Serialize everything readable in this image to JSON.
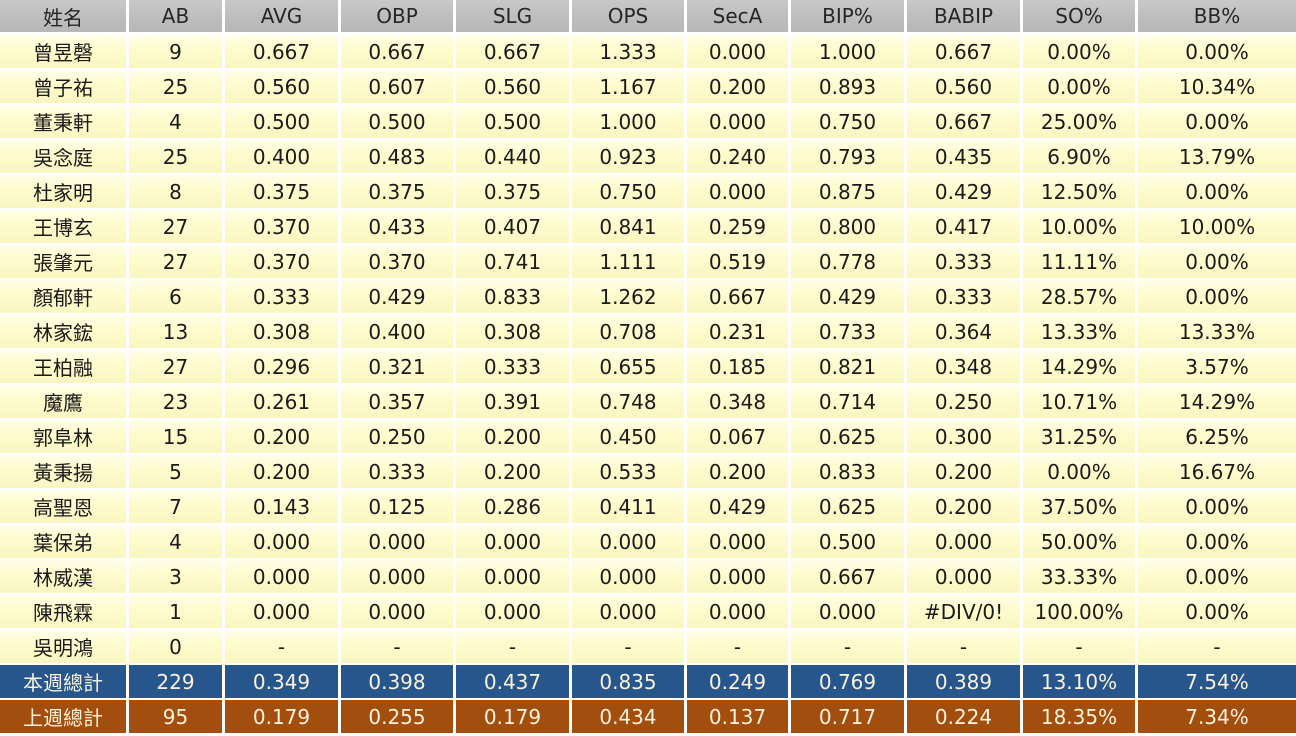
{
  "table": {
    "columns": [
      "姓名",
      "AB",
      "AVG",
      "OBP",
      "SLG",
      "OPS",
      "SecA",
      "BIP%",
      "BABIP",
      "SO%",
      "BB%"
    ],
    "rows": [
      {
        "name": "曾昱磬",
        "values": [
          "9",
          "0.667",
          "0.667",
          "0.667",
          "1.333",
          "0.000",
          "1.000",
          "0.667",
          "0.00%",
          "0.00%"
        ]
      },
      {
        "name": "曾子祐",
        "values": [
          "25",
          "0.560",
          "0.607",
          "0.560",
          "1.167",
          "0.200",
          "0.893",
          "0.560",
          "0.00%",
          "10.34%"
        ]
      },
      {
        "name": "董秉軒",
        "values": [
          "4",
          "0.500",
          "0.500",
          "0.500",
          "1.000",
          "0.000",
          "0.750",
          "0.667",
          "25.00%",
          "0.00%"
        ]
      },
      {
        "name": "吳念庭",
        "values": [
          "25",
          "0.400",
          "0.483",
          "0.440",
          "0.923",
          "0.240",
          "0.793",
          "0.435",
          "6.90%",
          "13.79%"
        ]
      },
      {
        "name": "杜家明",
        "values": [
          "8",
          "0.375",
          "0.375",
          "0.375",
          "0.750",
          "0.000",
          "0.875",
          "0.429",
          "12.50%",
          "0.00%"
        ]
      },
      {
        "name": "王博玄",
        "values": [
          "27",
          "0.370",
          "0.433",
          "0.407",
          "0.841",
          "0.259",
          "0.800",
          "0.417",
          "10.00%",
          "10.00%"
        ]
      },
      {
        "name": "張肇元",
        "values": [
          "27",
          "0.370",
          "0.370",
          "0.741",
          "1.111",
          "0.519",
          "0.778",
          "0.333",
          "11.11%",
          "0.00%"
        ]
      },
      {
        "name": "顏郁軒",
        "values": [
          "6",
          "0.333",
          "0.429",
          "0.833",
          "1.262",
          "0.667",
          "0.429",
          "0.333",
          "28.57%",
          "0.00%"
        ]
      },
      {
        "name": "林家鋐",
        "values": [
          "13",
          "0.308",
          "0.400",
          "0.308",
          "0.708",
          "0.231",
          "0.733",
          "0.364",
          "13.33%",
          "13.33%"
        ]
      },
      {
        "name": "王柏融",
        "values": [
          "27",
          "0.296",
          "0.321",
          "0.333",
          "0.655",
          "0.185",
          "0.821",
          "0.348",
          "14.29%",
          "3.57%"
        ]
      },
      {
        "name": "魔鷹",
        "values": [
          "23",
          "0.261",
          "0.357",
          "0.391",
          "0.748",
          "0.348",
          "0.714",
          "0.250",
          "10.71%",
          "14.29%"
        ]
      },
      {
        "name": "郭阜林",
        "values": [
          "15",
          "0.200",
          "0.250",
          "0.200",
          "0.450",
          "0.067",
          "0.625",
          "0.300",
          "31.25%",
          "6.25%"
        ]
      },
      {
        "name": "黃秉揚",
        "values": [
          "5",
          "0.200",
          "0.333",
          "0.200",
          "0.533",
          "0.200",
          "0.833",
          "0.200",
          "0.00%",
          "16.67%"
        ]
      },
      {
        "name": "高聖恩",
        "values": [
          "7",
          "0.143",
          "0.125",
          "0.286",
          "0.411",
          "0.429",
          "0.625",
          "0.200",
          "37.50%",
          "0.00%"
        ]
      },
      {
        "name": "葉保弟",
        "values": [
          "4",
          "0.000",
          "0.000",
          "0.000",
          "0.000",
          "0.000",
          "0.500",
          "0.000",
          "50.00%",
          "0.00%"
        ]
      },
      {
        "name": "林威漢",
        "values": [
          "3",
          "0.000",
          "0.000",
          "0.000",
          "0.000",
          "0.000",
          "0.667",
          "0.000",
          "33.33%",
          "0.00%"
        ]
      },
      {
        "name": "陳飛霖",
        "values": [
          "1",
          "0.000",
          "0.000",
          "0.000",
          "0.000",
          "0.000",
          "0.000",
          "#DIV/0!",
          "100.00%",
          "0.00%"
        ]
      },
      {
        "name": "吳明鴻",
        "values": [
          "0",
          "-",
          "-",
          "-",
          "-",
          "-",
          "-",
          "-",
          "-",
          "-"
        ]
      }
    ],
    "totals": [
      {
        "label": "本週總計",
        "values": [
          "229",
          "0.349",
          "0.398",
          "0.437",
          "0.835",
          "0.249",
          "0.769",
          "0.389",
          "13.10%",
          "7.54%"
        ]
      },
      {
        "label": "上週總計",
        "values": [
          "95",
          "0.179",
          "0.255",
          "0.179",
          "0.434",
          "0.137",
          "0.717",
          "0.224",
          "18.35%",
          "7.34%"
        ]
      }
    ]
  },
  "colors": {
    "header_bg": "#BFBFBF",
    "row_bg": "#FDFACC",
    "grid": "#FFFFFF",
    "text": "#1A1A1A",
    "week_total_bg": "#26568B",
    "prev_total_bg": "#A24E0E",
    "total_text": "#FAF2DC"
  }
}
